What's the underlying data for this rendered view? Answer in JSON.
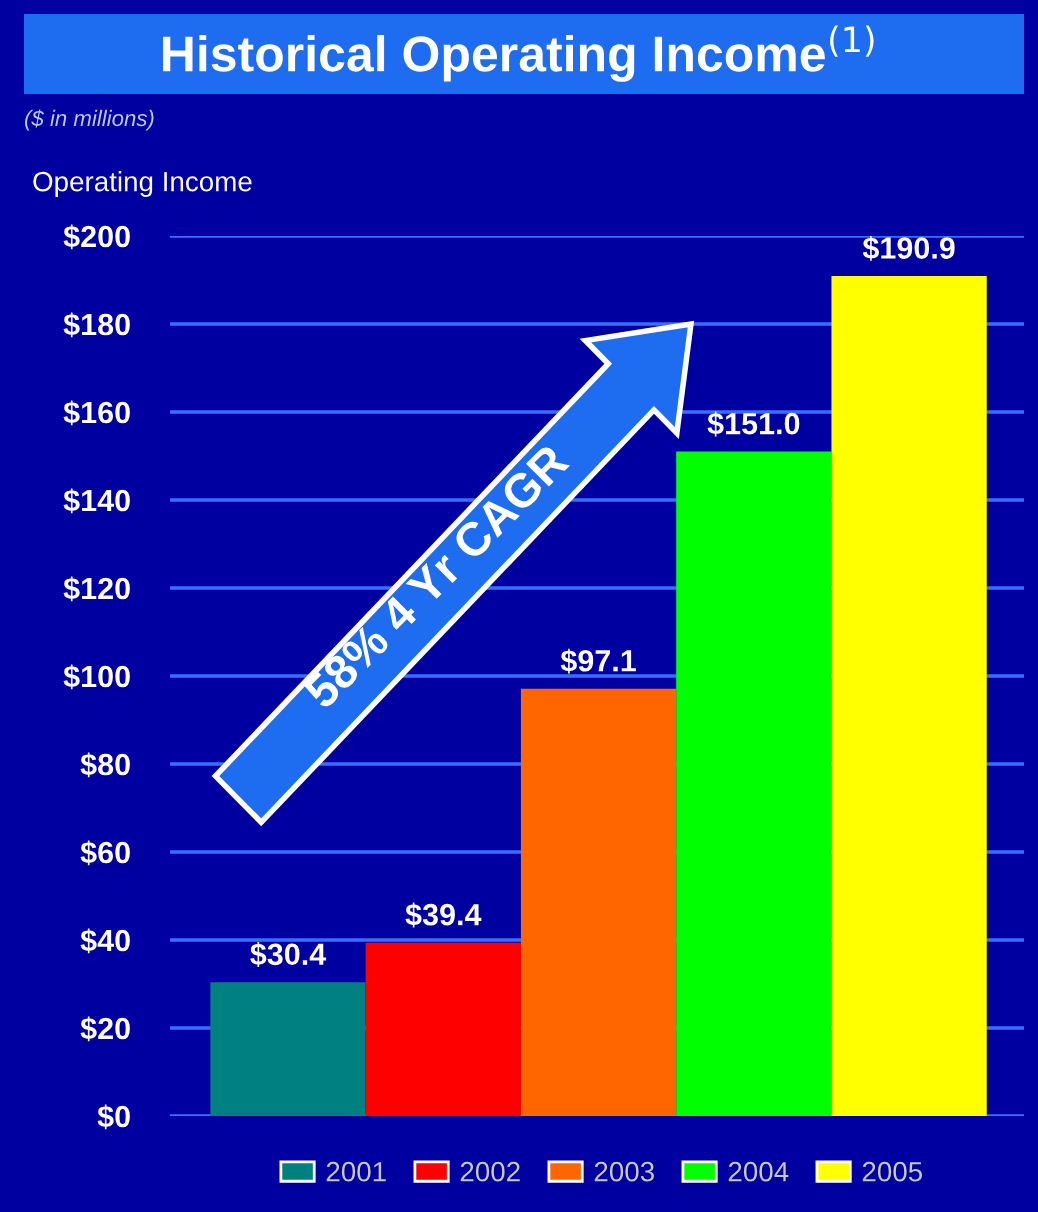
{
  "chart_data": {
    "type": "bar",
    "title": "Historical Operating Income$^{(1)}$",
    "subtitle": "($ in millions)",
    "ylabel": "Operating Income",
    "categories": [
      null,
      null,
      null,
      null,
      null
    ],
    "series": [
      {
        "name": "2001",
        "color": "#008080",
        "values": [
          30.4,
          null,
          null,
          null,
          null
        ],
        "value_labels": [
          "$30.4",
          null,
          null,
          null,
          null
        ]
      },
      {
        "name": "2002",
        "color": "#ff0000",
        "values": [
          null,
          39.4,
          null,
          null,
          null
        ],
        "value_labels": [
          null,
          "$39.4",
          null,
          null,
          null
        ]
      },
      {
        "name": "2003",
        "color": "#ff6600",
        "values": [
          null,
          null,
          97.1,
          null,
          null
        ],
        "value_labels": [
          null,
          null,
          "$97.1",
          null,
          null
        ]
      },
      {
        "name": "2004",
        "color": "#00ff00",
        "values": [
          null,
          null,
          null,
          151.0,
          null
        ],
        "value_labels": [
          null,
          null,
          null,
          "$151.0",
          null
        ]
      },
      {
        "name": "2005",
        "color": "#ffff00",
        "values": [
          null,
          null,
          null,
          null,
          190.9
        ],
        "value_labels": [
          null,
          null,
          null,
          null,
          "$190.9"
        ]
      }
    ],
    "ylim": [
      0,
      200
    ],
    "yticks": [
      {
        "value": 0,
        "label": "$0"
      },
      {
        "value": 20,
        "label": "$20"
      },
      {
        "value": 40,
        "label": "$40"
      },
      {
        "value": 60,
        "label": "$60"
      },
      {
        "value": 80,
        "label": "$80"
      },
      {
        "value": 100,
        "label": "$100"
      },
      {
        "value": 120,
        "label": "$120"
      },
      {
        "value": 140,
        "label": "$140"
      },
      {
        "value": 160,
        "label": "$160"
      },
      {
        "value": 180,
        "label": "$180"
      },
      {
        "value": 200,
        "label": "$200"
      }
    ],
    "grid": "y",
    "legend": "bottom",
    "annotations": [
      "58% 4 Yr CAGR"
    ]
  }
}
